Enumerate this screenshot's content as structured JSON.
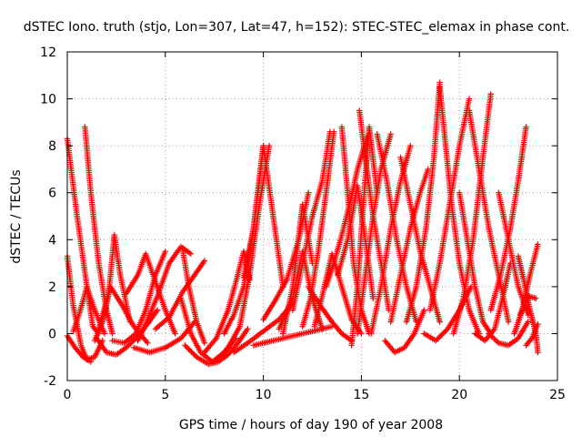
{
  "chart_data": {
    "type": "scatter",
    "title": "dSTEC Iono. truth (stjo, Lon=307, Lat=47, h=152): STEC-STEC_elemax in phase cont.",
    "xlabel": "GPS time / hours of day 190 of year 2008",
    "ylabel": "dSTEC  / TECUs",
    "xlim": [
      0,
      25
    ],
    "ylim": [
      -2,
      12
    ],
    "xticks": [
      0,
      5,
      10,
      15,
      20,
      25
    ],
    "yticks": [
      -2,
      0,
      2,
      4,
      6,
      8,
      10,
      12
    ],
    "grid": true,
    "marker": "+",
    "color": "#ff0000",
    "series": [
      {
        "x": [
          0.0,
          0.5,
          1.0,
          1.3,
          1.6
        ],
        "y": [
          8.3,
          5.0,
          2.0,
          0.3,
          0.0
        ]
      },
      {
        "x": [
          0.0,
          0.3,
          0.7,
          1.0,
          1.4,
          1.8
        ],
        "y": [
          3.3,
          1.2,
          -0.5,
          -1.1,
          -1.0,
          -0.3
        ]
      },
      {
        "x": [
          0.0,
          0.4,
          0.8,
          1.2
        ],
        "y": [
          -0.1,
          -0.6,
          -1.0,
          -1.2
        ]
      },
      {
        "x": [
          0.9,
          1.2,
          1.6,
          2.0,
          2.3
        ],
        "y": [
          8.8,
          6.0,
          3.0,
          1.0,
          0.0
        ]
      },
      {
        "x": [
          0.3,
          0.6,
          1.0,
          1.4,
          1.9
        ],
        "y": [
          0.1,
          0.8,
          2.0,
          1.0,
          0.0
        ]
      },
      {
        "x": [
          1.4,
          1.8,
          2.1,
          2.4,
          2.7,
          3.2
        ],
        "y": [
          -0.3,
          0.5,
          1.6,
          4.2,
          2.5,
          0.5
        ]
      },
      {
        "x": [
          1.5,
          2.0,
          2.5,
          3.0,
          3.5,
          4.0,
          4.6
        ],
        "y": [
          -0.2,
          -0.8,
          -0.9,
          -0.6,
          -0.2,
          0.3,
          1.0
        ]
      },
      {
        "x": [
          1.6,
          2.2,
          2.8,
          3.4,
          4.1
        ],
        "y": [
          0.2,
          2.0,
          1.2,
          0.3,
          -0.4
        ]
      },
      {
        "x": [
          2.3,
          2.9,
          3.5,
          4.0,
          4.5,
          5.0
        ],
        "y": [
          -0.3,
          -0.4,
          0.0,
          1.0,
          2.5,
          3.5
        ]
      },
      {
        "x": [
          3.0,
          3.6,
          4.0,
          4.5,
          5.0,
          5.5
        ],
        "y": [
          1.7,
          2.5,
          3.4,
          2.2,
          1.0,
          0.0
        ]
      },
      {
        "x": [
          3.4,
          4.2,
          5.0,
          5.8,
          6.5
        ],
        "y": [
          -0.6,
          -0.8,
          -0.6,
          -0.2,
          0.5
        ]
      },
      {
        "x": [
          3.6,
          4.0,
          4.6,
          5.2,
          5.8,
          6.3
        ],
        "y": [
          -0.3,
          0.4,
          1.6,
          3.0,
          3.7,
          3.4
        ]
      },
      {
        "x": [
          4.5,
          5.2,
          5.9,
          6.5,
          7.0
        ],
        "y": [
          0.2,
          0.7,
          1.8,
          2.5,
          3.1
        ]
      },
      {
        "x": [
          5.8,
          6.3,
          6.8,
          7.4,
          8.0,
          8.6
        ],
        "y": [
          1.5,
          0.0,
          -0.8,
          -1.2,
          -0.8,
          -0.2
        ]
      },
      {
        "x": [
          5.9,
          6.2,
          6.6,
          7.0
        ],
        "y": [
          3.5,
          2.0,
          0.5,
          -0.4
        ]
      },
      {
        "x": [
          6.0,
          6.6,
          7.2,
          7.7,
          8.2,
          8.7,
          9.2
        ],
        "y": [
          -0.5,
          -1.0,
          -1.3,
          -1.2,
          -0.9,
          -0.4,
          0.2
        ]
      },
      {
        "x": [
          7.0,
          7.6,
          8.2,
          8.6,
          9.0,
          9.3
        ],
        "y": [
          -0.8,
          -0.2,
          1.0,
          2.2,
          3.5,
          2.3
        ]
      },
      {
        "x": [
          7.6,
          8.2,
          8.8,
          9.3,
          9.8,
          10.3
        ],
        "y": [
          -1.2,
          -0.6,
          0.3,
          2.5,
          5.5,
          8.0
        ]
      },
      {
        "x": [
          8.0,
          8.5,
          9.0,
          9.5,
          10.0
        ],
        "y": [
          0.0,
          0.8,
          2.0,
          4.5,
          8.0
        ]
      },
      {
        "x": [
          8.5,
          9.2,
          10.0,
          10.8,
          11.5
        ],
        "y": [
          -0.8,
          -0.4,
          0.1,
          0.6,
          1.3
        ]
      },
      {
        "x": [
          9.0,
          9.5,
          10.0,
          10.5,
          11.0
        ],
        "y": [
          2.4,
          4.5,
          8.0,
          5.0,
          2.0
        ]
      },
      {
        "x": [
          9.5,
          10.5,
          11.5,
          12.5,
          13.5
        ],
        "y": [
          -0.5,
          -0.3,
          -0.1,
          0.1,
          0.3
        ]
      },
      {
        "x": [
          10.0,
          10.6,
          11.2,
          11.8,
          12.3
        ],
        "y": [
          0.6,
          1.4,
          2.3,
          4.0,
          6.0
        ]
      },
      {
        "x": [
          10.8,
          11.5,
          12.0,
          12.5,
          13.0
        ],
        "y": [
          0.2,
          1.5,
          3.5,
          1.5,
          0.2
        ]
      },
      {
        "x": [
          11.0,
          11.5,
          12.0,
          12.5
        ],
        "y": [
          0.0,
          2.0,
          5.5,
          3.0
        ]
      },
      {
        "x": [
          11.5,
          12.0,
          12.5,
          13.0,
          13.4
        ],
        "y": [
          1.0,
          3.0,
          5.0,
          6.5,
          8.6
        ]
      },
      {
        "x": [
          12.0,
          12.4,
          12.8,
          13.2,
          13.6
        ],
        "y": [
          0.3,
          1.5,
          3.5,
          6.0,
          8.6
        ]
      },
      {
        "x": [
          12.3,
          12.9,
          13.5,
          14.0,
          14.5
        ],
        "y": [
          2.0,
          1.2,
          0.5,
          0.0,
          -0.3
        ]
      },
      {
        "x": [
          12.6,
          13.0,
          13.5,
          14.0,
          14.5,
          15.0
        ],
        "y": [
          0.3,
          1.6,
          3.4,
          2.0,
          0.6,
          0.0
        ]
      },
      {
        "x": [
          13.2,
          13.6,
          14.0,
          14.4,
          14.8,
          15.3
        ],
        "y": [
          2.0,
          3.0,
          4.2,
          5.5,
          7.0,
          8.4
        ]
      },
      {
        "x": [
          13.8,
          14.3,
          14.8,
          15.2,
          15.6
        ],
        "y": [
          2.5,
          4.0,
          6.3,
          4.0,
          1.5
        ]
      },
      {
        "x": [
          14.0,
          14.3,
          14.6,
          15.0,
          15.4
        ],
        "y": [
          8.8,
          6.0,
          3.0,
          1.0,
          0.0
        ]
      },
      {
        "x": [
          14.5,
          14.8,
          15.1,
          15.4,
          15.8
        ],
        "y": [
          -0.5,
          2.0,
          5.5,
          8.8,
          6.0
        ]
      },
      {
        "x": [
          14.8,
          15.2,
          15.6,
          16.0,
          16.5
        ],
        "y": [
          0.0,
          2.5,
          5.0,
          7.0,
          8.5
        ]
      },
      {
        "x": [
          14.9,
          15.2,
          15.6,
          16.0,
          16.4
        ],
        "y": [
          9.5,
          7.5,
          5.0,
          3.0,
          1.0
        ]
      },
      {
        "x": [
          15.5,
          16.0,
          16.5,
          17.0,
          17.5
        ],
        "y": [
          0.0,
          2.0,
          4.5,
          6.5,
          8.0
        ]
      },
      {
        "x": [
          15.8,
          16.3,
          16.8,
          17.3,
          17.8
        ],
        "y": [
          8.5,
          6.5,
          4.0,
          2.0,
          0.5
        ]
      },
      {
        "x": [
          16.2,
          16.7,
          17.2,
          17.7,
          18.2
        ],
        "y": [
          -0.3,
          -0.8,
          -0.6,
          0.0,
          1.0
        ]
      },
      {
        "x": [
          16.5,
          17.0,
          17.5,
          18.0,
          18.4
        ],
        "y": [
          0.5,
          2.5,
          4.5,
          6.0,
          7.0
        ]
      },
      {
        "x": [
          17.0,
          17.5,
          18.0,
          18.5,
          19.0
        ],
        "y": [
          7.5,
          5.5,
          3.5,
          2.0,
          0.5
        ]
      },
      {
        "x": [
          17.3,
          17.8,
          18.3,
          18.7,
          19.0
        ],
        "y": [
          0.5,
          2.0,
          4.5,
          7.5,
          10.7
        ]
      },
      {
        "x": [
          18.2,
          18.8,
          19.4,
          20.0,
          20.6
        ],
        "y": [
          0.0,
          -0.3,
          0.2,
          1.0,
          2.0
        ]
      },
      {
        "x": [
          18.5,
          19.0,
          19.5,
          20.0,
          20.5
        ],
        "y": [
          1.0,
          3.0,
          5.5,
          8.0,
          10.0
        ]
      },
      {
        "x": [
          19.0,
          19.3,
          19.6,
          20.0,
          20.5,
          21.0
        ],
        "y": [
          10.5,
          8.0,
          5.5,
          3.0,
          1.0,
          0.0
        ]
      },
      {
        "x": [
          19.7,
          20.2,
          20.7,
          21.2,
          21.6
        ],
        "y": [
          0.0,
          1.5,
          4.0,
          7.5,
          10.2
        ]
      },
      {
        "x": [
          20.0,
          20.4,
          20.8,
          21.2,
          21.6
        ],
        "y": [
          6.0,
          4.0,
          2.0,
          0.5,
          0.0
        ]
      },
      {
        "x": [
          20.5,
          21.0,
          21.5,
          22.0,
          22.5
        ],
        "y": [
          9.5,
          7.0,
          4.5,
          2.5,
          0.5
        ]
      },
      {
        "x": [
          20.8,
          21.3,
          21.8,
          22.2,
          22.6
        ],
        "y": [
          0.0,
          -0.3,
          0.2,
          1.5,
          3.0
        ]
      },
      {
        "x": [
          21.5,
          22.0,
          22.5,
          23.0,
          23.5
        ],
        "y": [
          0.0,
          -0.4,
          -0.5,
          -0.2,
          0.5
        ]
      },
      {
        "x": [
          21.6,
          22.1,
          22.6,
          23.0,
          23.4
        ],
        "y": [
          1.0,
          2.5,
          4.5,
          6.5,
          8.8
        ]
      },
      {
        "x": [
          22.0,
          22.5,
          23.0,
          23.5
        ],
        "y": [
          6.0,
          4.0,
          2.0,
          0.8
        ]
      },
      {
        "x": [
          22.8,
          23.2,
          23.6,
          24.0
        ],
        "y": [
          0.0,
          1.0,
          2.5,
          3.8
        ]
      },
      {
        "x": [
          23.0,
          23.3,
          23.6,
          23.9,
          24.0
        ],
        "y": [
          3.3,
          2.2,
          1.0,
          0.0,
          -0.8
        ]
      },
      {
        "x": [
          23.1,
          23.5,
          23.9
        ],
        "y": [
          0.8,
          1.6,
          1.5
        ]
      },
      {
        "x": [
          23.4,
          23.7,
          24.0
        ],
        "y": [
          -0.5,
          -0.2,
          0.4
        ]
      }
    ]
  }
}
